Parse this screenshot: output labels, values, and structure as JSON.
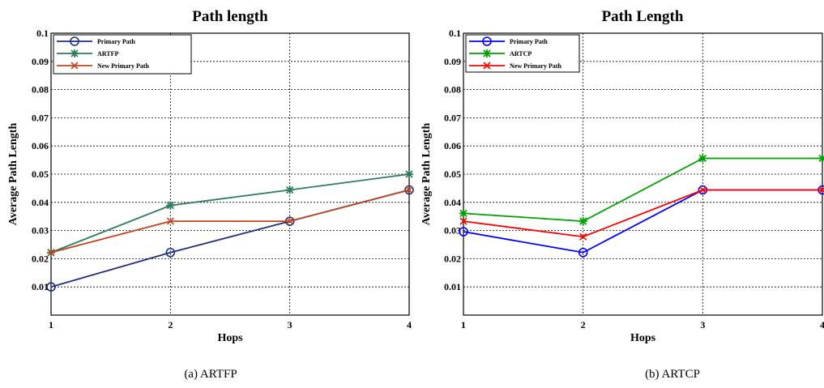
{
  "chart_data": [
    {
      "type": "line",
      "title": "Path length",
      "xlabel": "Hops",
      "ylabel": "Average Path Length",
      "caption": "(a)  ARTFP",
      "x": [
        1,
        2,
        3,
        4
      ],
      "xlim": [
        1,
        4
      ],
      "ylim": [
        0,
        0.1
      ],
      "xticks": [
        "1",
        "2",
        "3",
        "4"
      ],
      "yticks": [
        "0.01",
        "0.02",
        "0.03",
        "0.04",
        "0.05",
        "0.06",
        "0.07",
        "0.08",
        "0.09",
        "0.1"
      ],
      "grid": true,
      "legend_position": "top-left",
      "series": [
        {
          "name": "Primary Path",
          "color": "#1f2f80",
          "marker": "circle",
          "values": [
            0.01,
            0.0222,
            0.0333,
            0.0444
          ]
        },
        {
          "name": "ARTFP",
          "color": "#2e7d5b",
          "marker": "star",
          "values": [
            0.0222,
            0.0389,
            0.0444,
            0.05
          ]
        },
        {
          "name": "New Primary Path",
          "color": "#c0441c",
          "marker": "x",
          "values": [
            0.0222,
            0.0333,
            0.0333,
            0.0444
          ]
        }
      ]
    },
    {
      "type": "line",
      "title": "Path Length",
      "xlabel": "Hops",
      "ylabel": "Average Path Length",
      "caption": "(b)  ARTCP",
      "x": [
        1,
        2,
        3,
        4
      ],
      "xlim": [
        1,
        4
      ],
      "ylim": [
        0,
        0.1
      ],
      "xticks": [
        "1",
        "2",
        "3",
        "4"
      ],
      "yticks": [
        "0.01",
        "0.02",
        "0.03",
        "0.04",
        "0.05",
        "0.06",
        "0.07",
        "0.08",
        "0.09",
        "0.1"
      ],
      "grid": true,
      "legend_position": "top-left",
      "series": [
        {
          "name": "Primary Path",
          "color": "#0000ff",
          "marker": "circle",
          "values": [
            0.0296,
            0.0222,
            0.0444,
            0.0444
          ]
        },
        {
          "name": "ARTCP",
          "color": "#00a000",
          "marker": "star",
          "values": [
            0.0361,
            0.0333,
            0.0556,
            0.0556
          ]
        },
        {
          "name": "New Primary Path",
          "color": "#ff0000",
          "marker": "x",
          "values": [
            0.0333,
            0.0278,
            0.0444,
            0.0444
          ]
        }
      ]
    }
  ]
}
